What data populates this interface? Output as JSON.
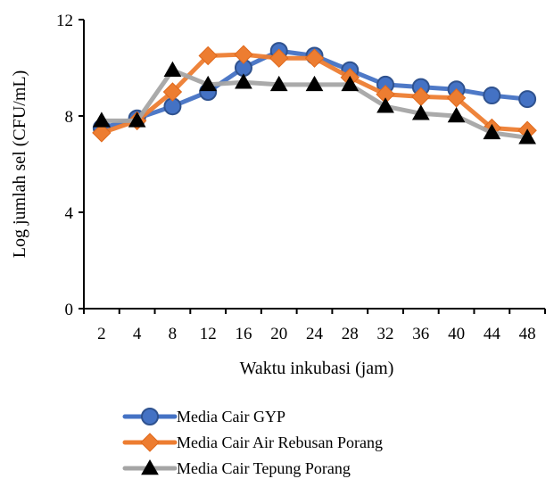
{
  "chart_data": {
    "type": "line",
    "title": "",
    "xlabel": "Waktu inkubasi (jam)",
    "ylabel": "Log jumlah sel (CFU/mL)",
    "categories": [
      "2",
      "4",
      "8",
      "12",
      "16",
      "20",
      "24",
      "28",
      "32",
      "36",
      "40",
      "44",
      "48"
    ],
    "ylim": [
      0,
      12
    ],
    "yticks": [
      "0",
      "4",
      "8",
      "12"
    ],
    "grid": false,
    "legend_position": "bottom",
    "series": [
      {
        "name": "Media Cair GYP",
        "color": "#4472C4",
        "marker": "circle",
        "values": [
          7.5,
          7.9,
          8.4,
          9.0,
          10.0,
          10.7,
          10.5,
          9.9,
          9.3,
          9.2,
          9.1,
          8.85,
          8.7
        ]
      },
      {
        "name": "Media Cair Air Rebusan Porang",
        "color": "#ED7D31",
        "marker": "diamond",
        "values": [
          7.3,
          7.8,
          9.0,
          10.5,
          10.55,
          10.4,
          10.4,
          9.6,
          8.9,
          8.8,
          8.75,
          7.5,
          7.4
        ]
      },
      {
        "name": "Media Cair Tepung Porang",
        "color": "#A5A5A5",
        "marker": "triangle",
        "values": [
          7.8,
          7.8,
          9.9,
          9.3,
          9.4,
          9.3,
          9.3,
          9.3,
          8.4,
          8.1,
          8.0,
          7.3,
          7.1
        ]
      }
    ]
  }
}
